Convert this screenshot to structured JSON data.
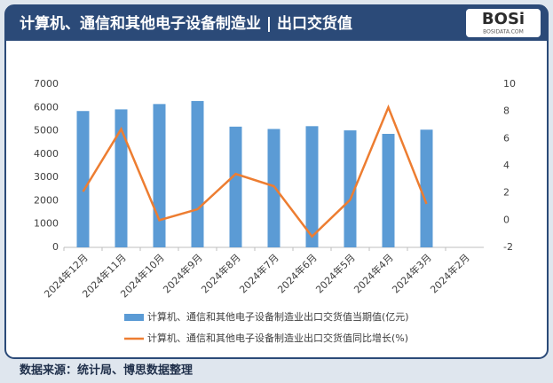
{
  "header": {
    "title": "计算机、通信和其他电子设备制造业 | 出口交货值",
    "logo": "BOSi",
    "logo_sub": "BOSIDATA.COM"
  },
  "chart_data": {
    "type": "bar",
    "categories": [
      "2024年12月",
      "2024年11月",
      "2024年10月",
      "2024年9月",
      "2024年8月",
      "2024年7月",
      "2024年6月",
      "2024年5月",
      "2024年4月",
      "2024年3月",
      "2024年2月"
    ],
    "series": [
      {
        "name": "计算机、通信和其他电子设备制造业出口交货值当期值(亿元)",
        "type": "bar",
        "color": "#5b9bd5",
        "values": [
          5850,
          5920,
          6150,
          6280,
          5180,
          5080,
          5200,
          5020,
          4870,
          5050,
          null
        ]
      },
      {
        "name": "计算机、通信和其他电子设备制造业出口交货值同比增长(%)",
        "type": "line",
        "axis": "y2",
        "color": "#ed7d31",
        "values": [
          2.1,
          6.7,
          0.0,
          0.8,
          3.4,
          2.5,
          -1.2,
          1.5,
          8.3,
          1.2,
          null
        ]
      }
    ],
    "ylim": [
      0,
      7000
    ],
    "yticks": [
      0,
      1000,
      2000,
      3000,
      4000,
      5000,
      6000,
      7000
    ],
    "y2lim": [
      -2,
      10
    ],
    "y2ticks": [
      -2,
      0,
      2,
      4,
      6,
      8,
      10
    ]
  },
  "footer": {
    "source": "数据来源：统计局、博思数据整理"
  }
}
